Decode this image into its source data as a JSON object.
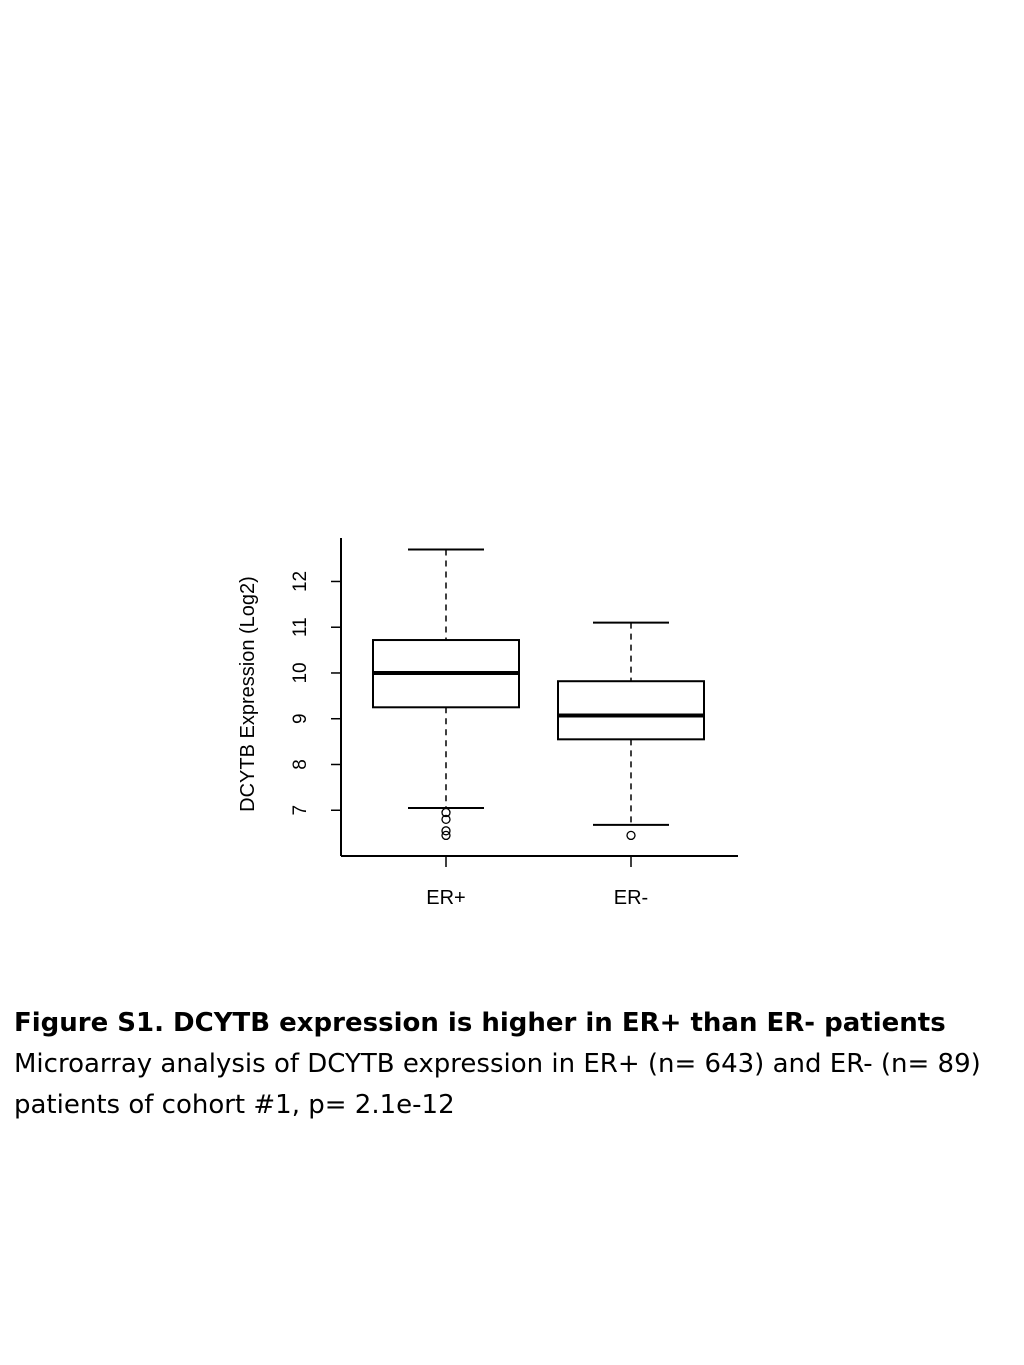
{
  "chart_data": {
    "type": "boxplot",
    "title": "",
    "xlabel": "",
    "ylabel": "DCYTB Expression (Log2)",
    "ylim": [
      6.0,
      12.95
    ],
    "yticks": [
      "7",
      "8",
      "9",
      "10",
      "11",
      "12"
    ],
    "categories": [
      "ER+",
      "ER-"
    ],
    "series": [
      {
        "name": "ER+",
        "whisker_low": 7.05,
        "q1": 9.25,
        "median": 10.0,
        "q3": 10.72,
        "whisker_high": 12.7,
        "outliers": [
          6.95,
          6.8,
          6.55,
          6.45
        ]
      },
      {
        "name": "ER-",
        "whisker_low": 6.68,
        "q1": 8.55,
        "median": 9.07,
        "q3": 9.82,
        "whisker_high": 11.1,
        "outliers": [
          6.45
        ]
      }
    ]
  },
  "caption": {
    "title": "Figure S1. DCYTB expression is higher in ER+ than ER- patients",
    "body": "Microarray analysis of DCYTB expression in ER+ (n= 643) and ER- (n= 89) patients of cohort #1, p= 2.1e-12"
  }
}
